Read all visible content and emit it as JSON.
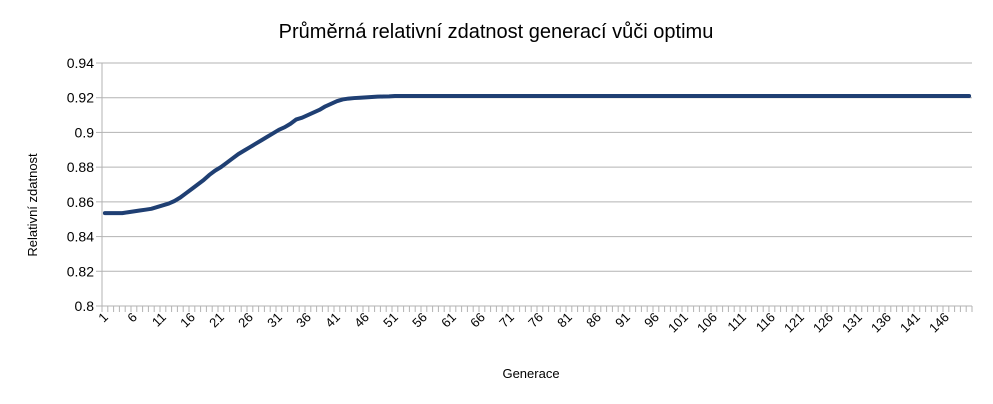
{
  "chart_data": {
    "type": "line",
    "title": "Průměrná relativní zdatnost generací vůči optimu",
    "xlabel": "Generace",
    "ylabel": "Relativní zdatnost",
    "ylim": [
      0.8,
      0.94
    ],
    "yticks": [
      "0.8",
      "0.82",
      "0.84",
      "0.86",
      "0.88",
      "0.9",
      "0.92",
      "0.94"
    ],
    "x_range": [
      1,
      150
    ],
    "xtick_labels": [
      "1",
      "6",
      "11",
      "16",
      "21",
      "26",
      "31",
      "36",
      "41",
      "46",
      "51",
      "56",
      "61",
      "66",
      "71",
      "76",
      "81",
      "86",
      "91",
      "96",
      "101",
      "106",
      "111",
      "116",
      "121",
      "126",
      "131",
      "136",
      "141",
      "146"
    ],
    "grid": "horizontal",
    "legend": "none",
    "line_color": "#1f3f73",
    "series": [
      {
        "points": [
          [
            1,
            0.8535
          ],
          [
            2,
            0.8535
          ],
          [
            3,
            0.8535
          ],
          [
            4,
            0.8535
          ],
          [
            5,
            0.854
          ],
          [
            6,
            0.8545
          ],
          [
            7,
            0.855
          ],
          [
            8,
            0.8555
          ],
          [
            9,
            0.856
          ],
          [
            10,
            0.857
          ],
          [
            11,
            0.858
          ],
          [
            12,
            0.859
          ],
          [
            13,
            0.8605
          ],
          [
            14,
            0.8625
          ],
          [
            15,
            0.865
          ],
          [
            16,
            0.8675
          ],
          [
            17,
            0.87
          ],
          [
            18,
            0.8725
          ],
          [
            19,
            0.8755
          ],
          [
            20,
            0.878
          ],
          [
            21,
            0.88
          ],
          [
            22,
            0.8825
          ],
          [
            23,
            0.885
          ],
          [
            24,
            0.8875
          ],
          [
            25,
            0.8895
          ],
          [
            26,
            0.8915
          ],
          [
            27,
            0.8935
          ],
          [
            28,
            0.8955
          ],
          [
            29,
            0.8975
          ],
          [
            30,
            0.8995
          ],
          [
            31,
            0.9015
          ],
          [
            32,
            0.903
          ],
          [
            33,
            0.905
          ],
          [
            34,
            0.9075
          ],
          [
            35,
            0.9085
          ],
          [
            36,
            0.91
          ],
          [
            37,
            0.9115
          ],
          [
            38,
            0.913
          ],
          [
            39,
            0.915
          ],
          [
            40,
            0.9165
          ],
          [
            41,
            0.918
          ],
          [
            42,
            0.919
          ],
          [
            43,
            0.9195
          ],
          [
            44,
            0.9198
          ],
          [
            45,
            0.92
          ],
          [
            46,
            0.9202
          ],
          [
            47,
            0.9204
          ],
          [
            48,
            0.9206
          ],
          [
            49,
            0.9207
          ],
          [
            50,
            0.9208
          ],
          [
            51,
            0.921
          ],
          [
            60,
            0.921
          ],
          [
            70,
            0.921
          ],
          [
            80,
            0.921
          ],
          [
            90,
            0.921
          ],
          [
            100,
            0.921
          ],
          [
            110,
            0.921
          ],
          [
            120,
            0.921
          ],
          [
            130,
            0.921
          ],
          [
            140,
            0.921
          ],
          [
            150,
            0.921
          ]
        ]
      }
    ]
  }
}
